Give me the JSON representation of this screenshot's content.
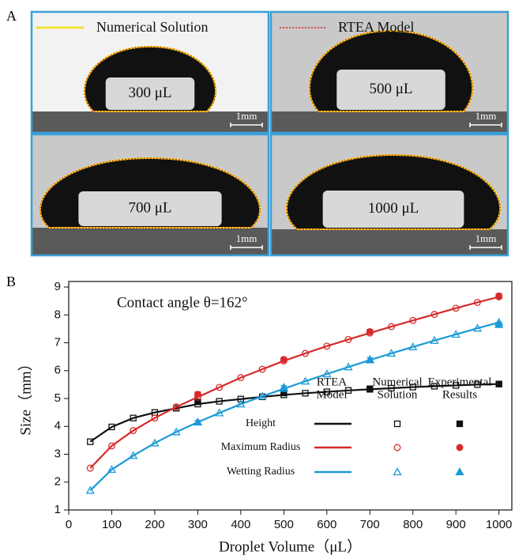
{
  "panel_a": {
    "label": "A",
    "legend": [
      {
        "name": "Numerical Solution",
        "color": "#f2e01c"
      },
      {
        "name": "RTEA Model",
        "color": "#d42020"
      }
    ],
    "images": [
      {
        "volume": "300 μL",
        "scale": "1mm"
      },
      {
        "volume": "500  μL",
        "scale": "1mm"
      },
      {
        "volume": "700  μL",
        "scale": "1mm"
      },
      {
        "volume": "1000  μL",
        "scale": "1mm"
      }
    ]
  },
  "chart_data": {
    "type": "line",
    "panel_label": "B",
    "annotation": "Contact angle θ=162°",
    "x_label": "Droplet Volume（μL）",
    "y_label": "Size（mm）",
    "xlim": [
      0,
      1030
    ],
    "ylim": [
      1,
      9.2
    ],
    "xticks": [
      0,
      100,
      200,
      300,
      400,
      500,
      600,
      700,
      800,
      900,
      1000
    ],
    "yticks": [
      1,
      2,
      3,
      4,
      5,
      6,
      7,
      8,
      9
    ],
    "legend_headers": [
      [
        "RTEA",
        "Model"
      ],
      [
        "Numerical",
        "Solution"
      ],
      [
        "Experimental",
        "Results"
      ]
    ],
    "x": [
      50,
      100,
      150,
      200,
      250,
      300,
      350,
      400,
      450,
      500,
      550,
      600,
      650,
      700,
      750,
      800,
      850,
      900,
      950,
      1000
    ],
    "exp_x": [
      300,
      500,
      700,
      1000
    ],
    "series": [
      {
        "name": "Height",
        "color": "#111111",
        "marker": "square",
        "values": [
          3.45,
          3.98,
          4.3,
          4.5,
          4.65,
          4.8,
          4.9,
          4.98,
          5.06,
          5.13,
          5.19,
          5.24,
          5.29,
          5.33,
          5.37,
          5.41,
          5.44,
          5.47,
          5.5,
          5.52
        ],
        "numerical": [
          3.45,
          3.98,
          4.3,
          4.5,
          4.65,
          4.8,
          4.9,
          4.98,
          5.06,
          5.13,
          5.19,
          5.24,
          5.29,
          5.33,
          5.37,
          5.41,
          5.44,
          5.47,
          5.5,
          5.52
        ],
        "experimental": [
          4.88,
          5.2,
          5.35,
          5.52
        ],
        "errors": [
          0.06,
          0.06,
          0.07,
          0.08
        ]
      },
      {
        "name": "Maximum Radius",
        "color": "#d62a2a",
        "marker": "circle",
        "values": [
          2.5,
          3.3,
          3.85,
          4.3,
          4.7,
          5.05,
          5.4,
          5.75,
          6.05,
          6.35,
          6.62,
          6.88,
          7.12,
          7.35,
          7.58,
          7.8,
          8.02,
          8.24,
          8.45,
          8.65
        ],
        "numerical": [
          2.5,
          3.3,
          3.85,
          4.3,
          4.7,
          5.05,
          5.4,
          5.75,
          6.05,
          6.35,
          6.62,
          6.88,
          7.12,
          7.35,
          7.58,
          7.8,
          8.02,
          8.24,
          8.45,
          8.65
        ],
        "experimental": [
          5.15,
          6.4,
          7.4,
          8.68
        ],
        "errors": [
          0.08,
          0.07,
          0.08,
          0.08
        ]
      },
      {
        "name": "Wetting Radius",
        "color": "#1a9ad6",
        "marker": "triangle",
        "values": [
          1.7,
          2.45,
          2.95,
          3.4,
          3.8,
          4.15,
          4.48,
          4.8,
          5.08,
          5.35,
          5.62,
          5.88,
          6.13,
          6.38,
          6.62,
          6.85,
          7.08,
          7.3,
          7.52,
          7.73
        ],
        "numerical": [
          1.7,
          2.45,
          2.95,
          3.4,
          3.8,
          4.15,
          4.48,
          4.8,
          5.08,
          5.35,
          5.62,
          5.88,
          6.13,
          6.38,
          6.62,
          6.85,
          7.08,
          7.3,
          7.52,
          7.73
        ],
        "experimental": [
          4.15,
          5.4,
          6.4,
          7.65
        ],
        "errors": [
          0.06,
          0.06,
          0.07,
          0.08
        ]
      }
    ]
  }
}
